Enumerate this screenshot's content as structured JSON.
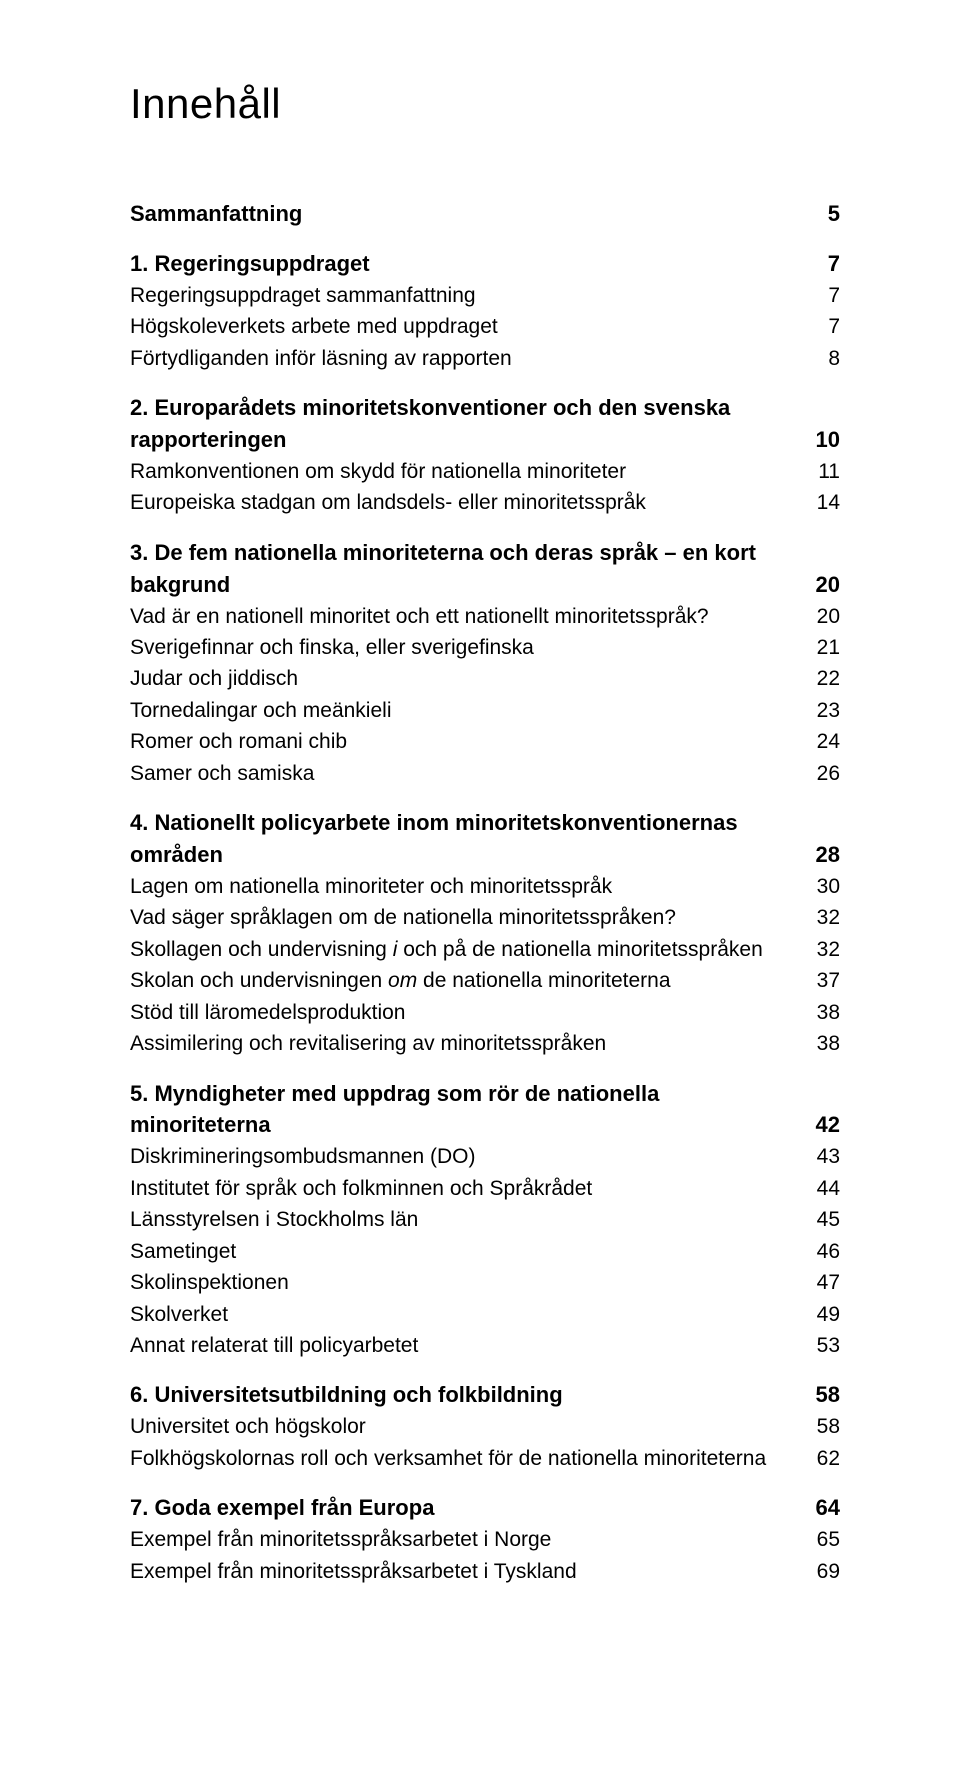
{
  "typography": {
    "font_family": "Gill Sans / Humanist sans-serif",
    "title_fontsize_pt": 32,
    "heading_fontsize_pt": 17,
    "sub_fontsize_pt": 16,
    "text_color": "#000000",
    "background_color": "#ffffff"
  },
  "title": "Innehåll",
  "toc": {
    "summary": {
      "label": "Sammanfattning",
      "page": "5"
    },
    "s1": {
      "head": {
        "label": "1. Regeringsuppdraget",
        "page": "7"
      },
      "i1": {
        "label": "Regeringsuppdraget sammanfattning",
        "page": "7"
      },
      "i2": {
        "label": "Högskoleverkets arbete med uppdraget",
        "page": "7"
      },
      "i3": {
        "label": "Förtydliganden inför läsning av rapporten",
        "page": "8"
      }
    },
    "s2": {
      "head_l1": "2. Europarådets minoritetskonventioner och den svenska",
      "head_l2": {
        "label": "rapporteringen",
        "page": "10"
      },
      "i1": {
        "label": "Ramkonventionen om skydd för nationella minoriteter",
        "page": "11"
      },
      "i2": {
        "label": "Europeiska stadgan om landsdels- eller minoritetsspråk",
        "page": "14"
      }
    },
    "s3": {
      "head_l1": "3. De fem nationella minoriteterna och deras språk – en kort",
      "head_l2": {
        "label": "bakgrund",
        "page": "20"
      },
      "i1": {
        "label": "Vad är en nationell minoritet och ett nationellt minoritetsspråk?",
        "page": "20"
      },
      "i2": {
        "label": "Sverigefinnar och finska, eller sverigefinska",
        "page": "21"
      },
      "i3": {
        "label": "Judar och jiddisch",
        "page": "22"
      },
      "i4": {
        "label": "Tornedalingar och meänkieli",
        "page": "23"
      },
      "i5": {
        "label": "Romer och romani chib",
        "page": "24"
      },
      "i6": {
        "label": "Samer och samiska",
        "page": "26"
      }
    },
    "s4": {
      "head_l1": "4. Nationellt policyarbete inom minoritetskonventionernas",
      "head_l2": {
        "label": "områden",
        "page": "28"
      },
      "i1": {
        "label": "Lagen om nationella minoriteter och minoritetsspråk",
        "page": "30"
      },
      "i2": {
        "label": "Vad säger språklagen om de nationella minoritetsspråken?",
        "page": "32"
      },
      "i3": {
        "pre": "Skollagen och undervisning ",
        "em": "i",
        "post": " och på de nationella minoritetsspråken",
        "page": "32"
      },
      "i4": {
        "pre": "Skolan och undervisningen ",
        "em": "om",
        "post": " de nationella minoriteterna",
        "page": "37"
      },
      "i5": {
        "label": "Stöd till läromedelsproduktion",
        "page": "38"
      },
      "i6": {
        "label": "Assimilering och revitalisering av minoritetsspråken",
        "page": "38"
      }
    },
    "s5": {
      "head_l1": "5. Myndigheter med uppdrag som rör de nationella",
      "head_l2": {
        "label": "minoriteterna",
        "page": "42"
      },
      "i1": {
        "label": "Diskrimineringsombudsmannen (DO)",
        "page": "43"
      },
      "i2": {
        "label": "Institutet för språk och folkminnen och Språkrådet",
        "page": "44"
      },
      "i3": {
        "label": "Länsstyrelsen i Stockholms län",
        "page": "45"
      },
      "i4": {
        "label": "Sametinget",
        "page": "46"
      },
      "i5": {
        "label": "Skolinspektionen",
        "page": "47"
      },
      "i6": {
        "label": "Skolverket",
        "page": "49"
      },
      "i7": {
        "label": "Annat relaterat till policyarbetet",
        "page": "53"
      }
    },
    "s6": {
      "head": {
        "label": "6. Universitetsutbildning och folkbildning",
        "page": "58"
      },
      "i1": {
        "label": "Universitet och högskolor",
        "page": "58"
      },
      "i2": {
        "label": "Folkhögskolornas roll och verksamhet för de nationella minoriteterna",
        "page": "62"
      }
    },
    "s7": {
      "head": {
        "label": "7. Goda exempel från Europa",
        "page": "64"
      },
      "i1": {
        "label": "Exempel från minoritetsspråksarbetet i Norge",
        "page": "65"
      },
      "i2": {
        "label": "Exempel från minoritetsspråksarbetet i Tyskland",
        "page": "69"
      }
    }
  }
}
